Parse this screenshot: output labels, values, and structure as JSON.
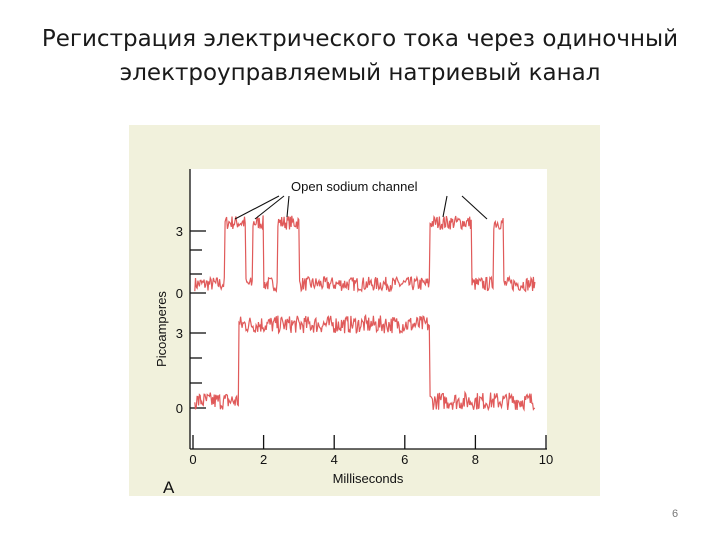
{
  "slide": {
    "title_line1": "Регистрация электрического тока через одиночный",
    "title_line2": "электроуправляемый  натриевый  канал",
    "page_number": "6"
  },
  "colors": {
    "trace": "#e05a5a",
    "panel_background": "#f1f1dc",
    "plot_background": "#ffffff"
  },
  "chart_data": {
    "type": "line",
    "title": "",
    "panel_label": "A",
    "xlabel": "Milliseconds",
    "ylabel": "Picoamperes",
    "xlim": [
      0,
      10
    ],
    "x_ticks": [
      "0",
      "2",
      "4",
      "6",
      "8",
      "10"
    ],
    "annotation": "Open sodium channel",
    "annotation_arrows": 4,
    "series": [
      {
        "y_ticks": [
          "3",
          "0"
        ],
        "levels": [
          0,
          3
        ],
        "open_intervals_ms": [
          [
            0.9,
            1.5
          ],
          [
            1.7,
            2.0
          ],
          [
            2.4,
            3.0
          ],
          [
            6.7,
            7.9
          ],
          [
            8.5,
            8.8
          ]
        ],
        "noise_pA": 0.35
      },
      {
        "y_ticks": [
          "3",
          "0"
        ],
        "levels": [
          0,
          3
        ],
        "open_intervals_ms": [
          [
            1.3,
            6.7
          ]
        ],
        "noise_pA": 0.35
      }
    ]
  }
}
